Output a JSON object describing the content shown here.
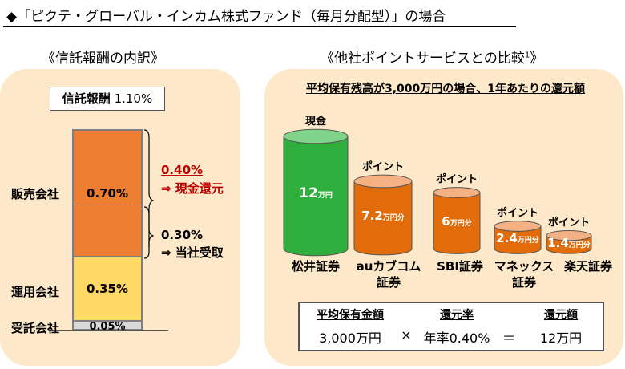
{
  "title": "◆「ピクテ・グローバル・インカム株式ファンド（毎月分配型）」の場合",
  "left": {
    "heading": "《信託報酬の内訳》",
    "fee_box": {
      "label": "信託報酬",
      "value": "1.10%"
    },
    "companies": {
      "sales": "販売会社",
      "management": "運用会社",
      "trustee": "受託会社"
    },
    "segments": [
      {
        "name": "販売会社",
        "value": 0.7,
        "label": "0.70%",
        "color": "#ed7d31"
      },
      {
        "name": "運用会社",
        "value": 0.35,
        "label": "0.35%",
        "color": "#ffd966"
      },
      {
        "name": "受託会社",
        "value": 0.05,
        "label": "0.05%",
        "color": "#d9d9d9"
      }
    ],
    "split_notes": [
      {
        "pct": "0.40%",
        "text": "⇒ 現金還元"
      },
      {
        "pct": "0.30%",
        "text": "⇒ 当社受取"
      }
    ]
  },
  "right": {
    "heading": "《他社ポイントサービスとの比較",
    "heading_sup": "1",
    "heading_end": "》",
    "subheading": "平均保有残高が3,000万円の場合、1年あたりの還元額",
    "chart_data": {
      "type": "bar",
      "title": "平均保有残高が3,000万円の場合、1年あたりの還元額",
      "unit": "万円",
      "categories": [
        "松井証券",
        "auカブコム証券",
        "SBI証券",
        "マネックス証券",
        "楽天証券"
      ],
      "category_lines": [
        [
          "松井証券"
        ],
        [
          "auカブコム",
          "証券"
        ],
        [
          "SBI証券"
        ],
        [
          "マネックス",
          "証券"
        ],
        [
          "楽天証券"
        ]
      ],
      "values": [
        12,
        7.2,
        6,
        2.4,
        1.4
      ],
      "value_labels": [
        "12",
        "7.2",
        "6",
        "2.4",
        "1.4"
      ],
      "value_units": [
        "万円",
        "万円分",
        "万円分",
        "万円分",
        "万円分"
      ],
      "top_labels": [
        "現金",
        "ポイント",
        "ポイント",
        "ポイント",
        "ポイント"
      ],
      "colors": {
        "cash_body": "#2eae3c",
        "cash_top": "#7fd48a",
        "point_body": "#e36c0a",
        "point_top": "#f4b183"
      }
    },
    "formula": {
      "headers": [
        "平均保有金額",
        "還元率",
        "還元額"
      ],
      "values": [
        "3,000万円",
        "年率0.40%",
        "12万円"
      ],
      "operators": [
        "×",
        "＝"
      ]
    }
  }
}
